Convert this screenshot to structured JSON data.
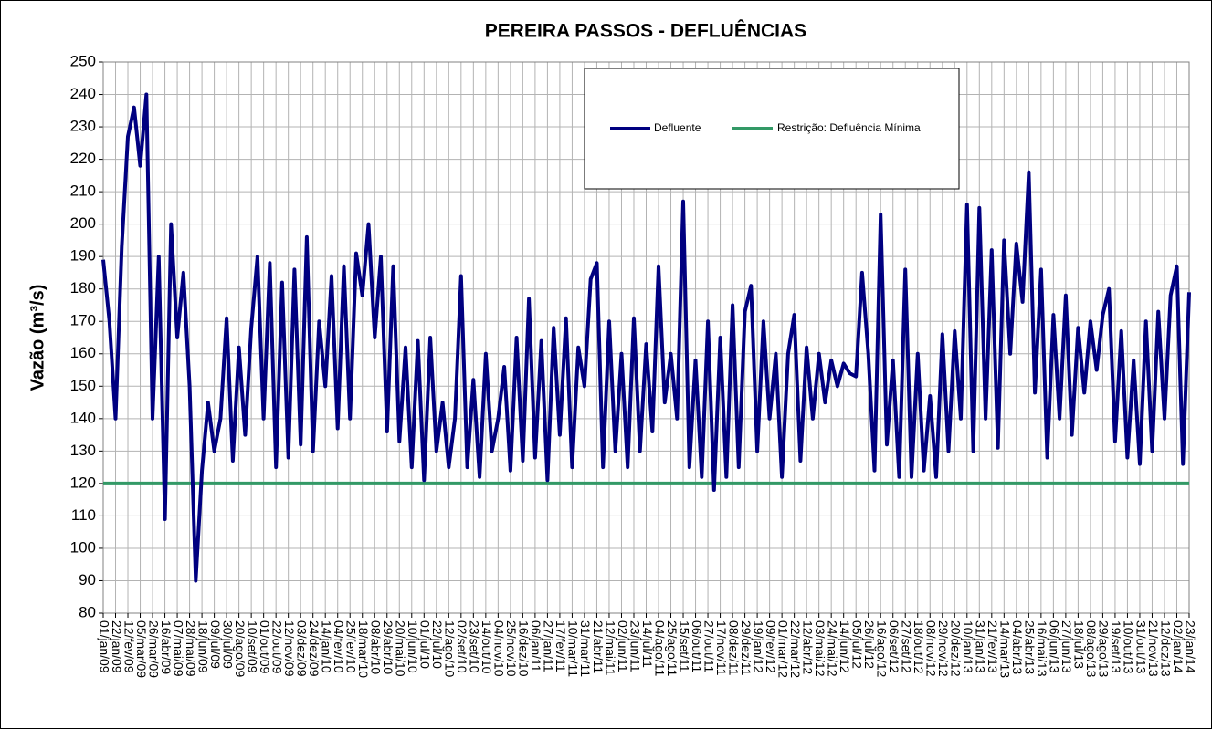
{
  "chart_data": {
    "type": "line",
    "title": "PEREIRA PASSOS - DEFLUÊNCIAS",
    "y_label": "Vazão (m³/s)",
    "categories": [
      "01/jan/09",
      null,
      "22/jan/09",
      null,
      "12/fev/09",
      null,
      "05/mar/09",
      null,
      "26/mar/09",
      null,
      "16/abr/09",
      null,
      "07/mai/09",
      null,
      "28/mai/09",
      null,
      "18/jun/09",
      null,
      "09/jul/09",
      null,
      "30/jul/09",
      null,
      "20/ago/09",
      null,
      "10/set/09",
      null,
      "01/out/09",
      null,
      "22/out/09",
      null,
      "12/nov/09",
      null,
      "03/dez/09",
      null,
      "24/dez/09",
      null,
      "14/jan/10",
      null,
      "04/fev/10",
      null,
      "25/fev/10",
      null,
      "18/mar/10",
      null,
      "08/abr/10",
      null,
      "29/abr/10",
      null,
      "20/mai/10",
      null,
      "10/jun/10",
      null,
      "01/jul/10",
      null,
      "22/jul/10",
      null,
      "12/ago/10",
      null,
      "02/set/10",
      null,
      "23/set/10",
      null,
      "14/out/10",
      null,
      "04/nov/10",
      null,
      "25/nov/10",
      null,
      "16/dez/10",
      null,
      "06/jan/11",
      null,
      "27/jan/11",
      null,
      "17/fev/11",
      null,
      "10/mar/11",
      null,
      "31/mar/11",
      null,
      "21/abr/11",
      null,
      "12/mai/11",
      null,
      "02/jun/11",
      null,
      "23/jun/11",
      null,
      "14/jul/11",
      null,
      "04/ago/11",
      null,
      "25/ago/11",
      null,
      "15/set/11",
      null,
      "06/out/11",
      null,
      "27/out/11",
      null,
      "17/nov/11",
      null,
      "08/dez/11",
      null,
      "29/dez/11",
      null,
      "19/jan/12",
      null,
      "09/fev/12",
      null,
      "01/mar/12",
      null,
      "22/mar/12",
      null,
      "12/abr/12",
      null,
      "03/mai/12",
      null,
      "24/mai/12",
      null,
      "14/jun/12",
      null,
      "05/jul/12",
      null,
      "26/jul/12",
      null,
      "16/ago/12",
      null,
      "06/set/12",
      null,
      "27/set/12",
      null,
      "18/out/12",
      null,
      "08/nov/12",
      null,
      "29/nov/12",
      null,
      "20/dez/12",
      null,
      "10/jan/13",
      null,
      "31/jan/13",
      null,
      "21/fev/13",
      null,
      "14/mar/13",
      null,
      "04/abr/13",
      null,
      "25/abr/13",
      null,
      "16/mai/13",
      null,
      "06/jun/13",
      null,
      "27/jun/13",
      null,
      "18/jul/13",
      null,
      "08/ago/13",
      null,
      "29/ago/13",
      null,
      "19/set/13",
      null,
      "10/out/13",
      null,
      "31/out/13",
      null,
      "21/nov/13",
      null,
      "12/dez/13",
      null,
      "02/jan/14",
      null,
      "23/jan/14"
    ],
    "series": [
      {
        "name": "Defluente",
        "color": "#000080",
        "values": [
          189,
          170,
          140,
          193,
          227,
          236,
          218,
          240,
          140,
          190,
          109,
          200,
          165,
          185,
          150,
          90,
          124,
          145,
          130,
          140,
          171,
          127,
          162,
          135,
          168,
          190,
          140,
          188,
          125,
          182,
          128,
          186,
          132,
          196,
          130,
          170,
          150,
          184,
          137,
          187,
          140,
          191,
          178,
          200,
          165,
          190,
          136,
          187,
          133,
          162,
          125,
          164,
          121,
          165,
          130,
          145,
          125,
          140,
          184,
          125,
          152,
          122,
          160,
          130,
          140,
          156,
          124,
          165,
          127,
          177,
          128,
          164,
          121,
          168,
          135,
          171,
          125,
          162,
          150,
          183,
          188,
          125,
          170,
          130,
          160,
          125,
          171,
          130,
          163,
          136,
          187,
          145,
          160,
          140,
          207,
          125,
          158,
          122,
          170,
          118,
          165,
          122,
          175,
          125,
          173,
          181,
          130,
          170,
          140,
          160,
          122,
          160,
          172,
          127,
          162,
          140,
          160,
          145,
          158,
          150,
          157,
          154,
          153,
          185,
          160,
          124,
          203,
          132,
          158,
          122,
          186,
          122,
          160,
          124,
          147,
          122,
          166,
          130,
          167,
          140,
          206,
          130,
          205,
          140,
          192,
          131,
          195,
          160,
          194,
          176,
          216,
          148,
          186,
          128,
          172,
          140,
          178,
          135,
          168,
          148,
          170,
          155,
          172,
          180,
          133,
          167,
          128,
          158,
          126,
          170,
          130,
          173,
          140,
          178,
          187,
          126,
          179
        ]
      },
      {
        "name": "Restrição: Defluência Mínima",
        "color": "#339966",
        "values": [
          120,
          120,
          120,
          120,
          120,
          120,
          120,
          120,
          120,
          120,
          120,
          120,
          120,
          120,
          120,
          120,
          120,
          120,
          120,
          120,
          120,
          120,
          120,
          120,
          120,
          120,
          120,
          120,
          120,
          120,
          120,
          120,
          120,
          120,
          120,
          120,
          120,
          120,
          120,
          120,
          120,
          120,
          120,
          120,
          120,
          120,
          120,
          120,
          120,
          120,
          120,
          120,
          120,
          120,
          120,
          120,
          120,
          120,
          120,
          120,
          120,
          120,
          120,
          120,
          120,
          120,
          120,
          120,
          120,
          120,
          120,
          120,
          120,
          120,
          120,
          120,
          120,
          120,
          120,
          120,
          120,
          120,
          120,
          120,
          120,
          120,
          120,
          120,
          120,
          120,
          120,
          120,
          120,
          120,
          120,
          120,
          120,
          120,
          120,
          120,
          120,
          120,
          120,
          120,
          120,
          120,
          120,
          120,
          120,
          120,
          120,
          120,
          120,
          120,
          120,
          120,
          120,
          120,
          120,
          120,
          120,
          120,
          120,
          120,
          120,
          120,
          120,
          120,
          120,
          120,
          120,
          120,
          120,
          120,
          120,
          120,
          120,
          120,
          120,
          120,
          120,
          120,
          120,
          120,
          120,
          120,
          120,
          120,
          120,
          120,
          120,
          120,
          120,
          120,
          120,
          120,
          120,
          120,
          120,
          120,
          120,
          120,
          120,
          120,
          120,
          120,
          120,
          120,
          120,
          120,
          120,
          120,
          120,
          120,
          120,
          120,
          120
        ]
      }
    ],
    "ylim": [
      80,
      250
    ],
    "yticks": [
      80,
      90,
      100,
      110,
      120,
      130,
      140,
      150,
      160,
      170,
      180,
      190,
      200,
      210,
      220,
      230,
      240,
      250
    ],
    "grid": true,
    "legend": "top"
  }
}
